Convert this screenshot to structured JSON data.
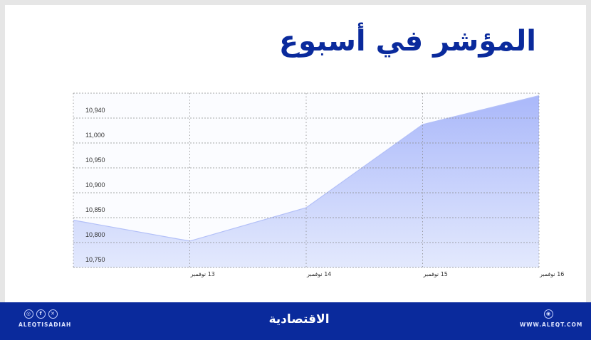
{
  "title": "المؤشر في أسبوع",
  "footer": {
    "social_handle": "ALEQTISADIAH",
    "social_icons": [
      "instagram-icon",
      "facebook-icon",
      "x-icon"
    ],
    "brand": "الاقتصادية",
    "website": "WWW.ALEQT.COM",
    "website_icon": "globe-icon"
  },
  "colors": {
    "title": "#0a2a9c",
    "footer_bg": "#0a2a9c",
    "area_fill_top": "#aab8fa",
    "area_fill_bottom": "#e3e9fd",
    "grid": "#8a8a8a"
  },
  "chart_data": {
    "type": "area",
    "title": "المؤشر في أسبوع",
    "xlabel": "",
    "ylabel": "",
    "categories": [
      "",
      "13 نوفمبر",
      "14 نوفمبر",
      "15 نوفمبر",
      "16 نوفمبر"
    ],
    "y_tick_labels": [
      "10,940",
      "11,000",
      "10,950",
      "10,900",
      "10,850",
      "10,800",
      "10,750"
    ],
    "x_tick_labels": [
      "13 نوفمبر",
      "14 نوفمبر",
      "15 نوفمبر",
      "16 نوفمبر"
    ],
    "series": [
      {
        "name": "المؤشر",
        "values": [
          10820,
          10778,
          10845,
          11012,
          11070
        ]
      }
    ],
    "ylim": [
      10725,
      11075
    ],
    "grid": true,
    "legend": "none"
  }
}
